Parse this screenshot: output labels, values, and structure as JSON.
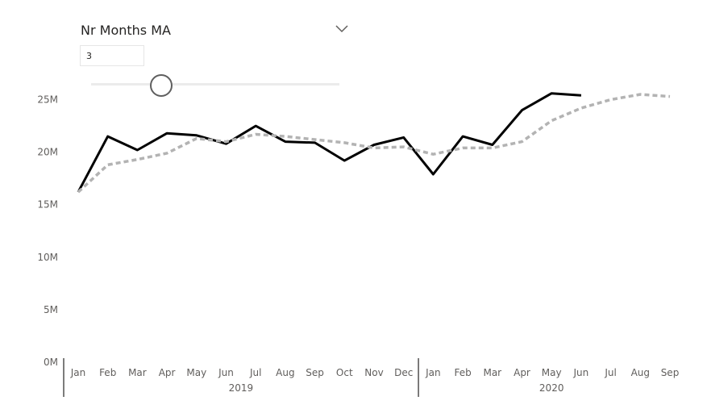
{
  "slicer": {
    "title": "Nr Months MA",
    "value": "3",
    "slider_value": 3,
    "slider_min": 1,
    "slider_max": 12
  },
  "chart_data": {
    "type": "line",
    "title": "",
    "xlabel": "",
    "ylabel": "",
    "grid": false,
    "categories": [
      "Jan",
      "Feb",
      "Mar",
      "Apr",
      "May",
      "Jun",
      "Jul",
      "Aug",
      "Sep",
      "Oct",
      "Nov",
      "Dec",
      "Jan",
      "Feb",
      "Mar",
      "Apr",
      "May",
      "Jun",
      "Jul",
      "Aug",
      "Sep"
    ],
    "years": [
      {
        "label": "2019",
        "start": 0,
        "end": 11
      },
      {
        "label": "2020",
        "start": 12,
        "end": 20
      }
    ],
    "yticks": [
      "0M",
      "5M",
      "10M",
      "15M",
      "20M",
      "25M"
    ],
    "ylim": [
      0,
      27500000
    ],
    "series": [
      {
        "color": "#000000",
        "style": "solid",
        "values": [
          16200000,
          21500000,
          20200000,
          21800000,
          21600000,
          20800000,
          22500000,
          21000000,
          20900000,
          19200000,
          20700000,
          21400000,
          17900000,
          21500000,
          20700000,
          24000000,
          25600000,
          25400000,
          null,
          null,
          null
        ]
      },
      {
        "color": "#b3b3b3",
        "style": "dashed",
        "values": [
          16200000,
          18800000,
          19300000,
          19900000,
          21300000,
          21000000,
          21700000,
          21500000,
          21200000,
          20900000,
          20400000,
          20500000,
          19800000,
          20400000,
          20400000,
          21000000,
          23000000,
          24200000,
          25000000,
          25500000,
          25300000
        ]
      }
    ]
  }
}
